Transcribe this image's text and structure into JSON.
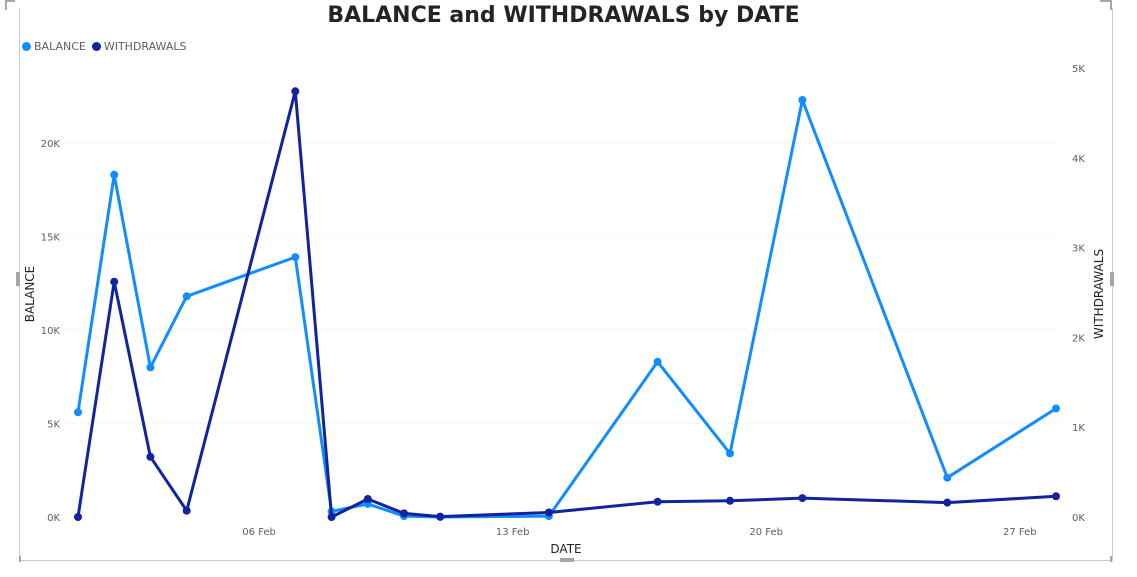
{
  "title": "BALANCE and WITHDRAWALS by DATE",
  "legend": [
    {
      "label": "BALANCE",
      "color": "#118DFF"
    },
    {
      "label": "WITHDRAWALS",
      "color": "#12239E"
    }
  ],
  "chart_data": {
    "type": "line",
    "title": "BALANCE and WITHDRAWALS by DATE",
    "xlabel": "DATE",
    "ylabel_left": "BALANCE",
    "ylabel_right": "WITHDRAWALS",
    "x_range": [
      "2024-02-01",
      "2024-02-28"
    ],
    "x_ticks": [
      {
        "date": "2024-02-06",
        "label": "06 Feb"
      },
      {
        "date": "2024-02-13",
        "label": "13 Feb"
      },
      {
        "date": "2024-02-20",
        "label": "20 Feb"
      },
      {
        "date": "2024-02-27",
        "label": "27 Feb"
      }
    ],
    "ylim_left": [
      0,
      24000
    ],
    "yticks_left": [
      {
        "value": 0,
        "label": "0K"
      },
      {
        "value": 5000,
        "label": "5K"
      },
      {
        "value": 10000,
        "label": "10K"
      },
      {
        "value": 15000,
        "label": "15K"
      },
      {
        "value": 20000,
        "label": "20K"
      }
    ],
    "ylim_right": [
      0,
      5000
    ],
    "yticks_right": [
      {
        "value": 0,
        "label": "0K"
      },
      {
        "value": 1000,
        "label": "1K"
      },
      {
        "value": 2000,
        "label": "2K"
      },
      {
        "value": 3000,
        "label": "3K"
      },
      {
        "value": 4000,
        "label": "4K"
      },
      {
        "value": 5000,
        "label": "5K"
      }
    ],
    "grid": true,
    "legend_position": "top-left",
    "series": [
      {
        "name": "BALANCE",
        "axis": "left",
        "color": "#118DFF",
        "points": [
          {
            "x": "2024-02-01",
            "y": 5600
          },
          {
            "x": "2024-02-02",
            "y": 18300
          },
          {
            "x": "2024-02-03",
            "y": 8000
          },
          {
            "x": "2024-02-04",
            "y": 11800
          },
          {
            "x": "2024-02-07",
            "y": 13900
          },
          {
            "x": "2024-02-08",
            "y": 300
          },
          {
            "x": "2024-02-09",
            "y": 700
          },
          {
            "x": "2024-02-10",
            "y": 50
          },
          {
            "x": "2024-02-11",
            "y": 0
          },
          {
            "x": "2024-02-14",
            "y": 50
          },
          {
            "x": "2024-02-17",
            "y": 8300
          },
          {
            "x": "2024-02-19",
            "y": 3400
          },
          {
            "x": "2024-02-21",
            "y": 22300
          },
          {
            "x": "2024-02-25",
            "y": 2100
          },
          {
            "x": "2024-02-28",
            "y": 5800
          }
        ]
      },
      {
        "name": "WITHDRAWALS",
        "axis": "right",
        "color": "#12239E",
        "points": [
          {
            "x": "2024-02-01",
            "y": 0
          },
          {
            "x": "2024-02-02",
            "y": 2620
          },
          {
            "x": "2024-02-03",
            "y": 670
          },
          {
            "x": "2024-02-04",
            "y": 70
          },
          {
            "x": "2024-02-07",
            "y": 4740
          },
          {
            "x": "2024-02-08",
            "y": 0
          },
          {
            "x": "2024-02-09",
            "y": 200
          },
          {
            "x": "2024-02-10",
            "y": 40
          },
          {
            "x": "2024-02-11",
            "y": 5
          },
          {
            "x": "2024-02-14",
            "y": 50
          },
          {
            "x": "2024-02-17",
            "y": 170
          },
          {
            "x": "2024-02-19",
            "y": 180
          },
          {
            "x": "2024-02-21",
            "y": 210
          },
          {
            "x": "2024-02-25",
            "y": 160
          },
          {
            "x": "2024-02-28",
            "y": 230
          }
        ]
      }
    ]
  }
}
